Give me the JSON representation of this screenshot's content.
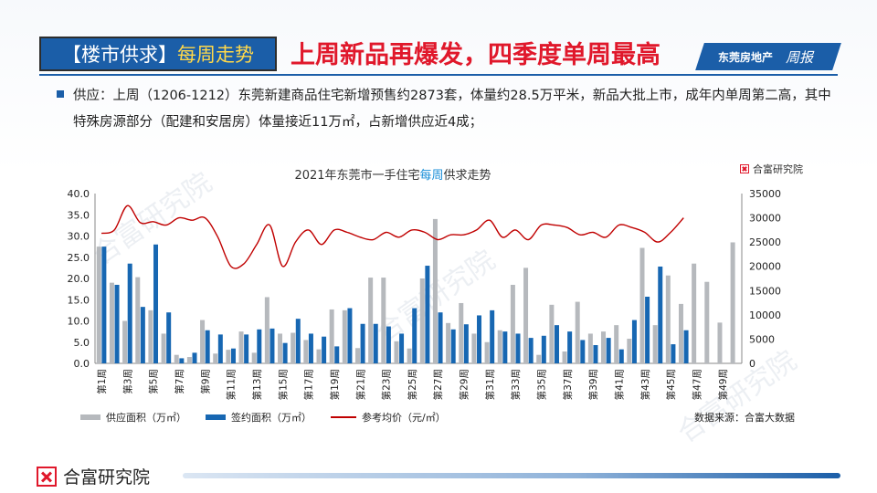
{
  "header": {
    "tag_prefix": "【楼市供求】",
    "tag_highlight": "每周走势",
    "headline": "上周新品再爆发，四季度单周最高",
    "brand": "东莞房地产",
    "brand_script": "周报"
  },
  "bullet": {
    "text": "供应：上周（1206-1212）东莞新建商品住宅新增预售约2873套，体量约28.5万平米，新品大批上市，成年内单周第二高，其中特殊房源部分（配建和安居房）体量接近11万㎡，占新增供应近4成；"
  },
  "chart": {
    "title_prefix": "2021年东莞市一手住宅",
    "title_highlight": "每周",
    "title_suffix": "供求走势",
    "logo_text": "合富研究院",
    "source": "数据来源：合富大数据",
    "watermark": "合富研究院"
  },
  "chart_data": {
    "type": "bar",
    "x": [
      "第1周",
      "第2周",
      "第3周",
      "第4周",
      "第5周",
      "第6周",
      "第7周",
      "第8周",
      "第9周",
      "第10周",
      "第11周",
      "第12周",
      "第13周",
      "第14周",
      "第15周",
      "第16周",
      "第17周",
      "第18周",
      "第19周",
      "第20周",
      "第21周",
      "第22周",
      "第23周",
      "第24周",
      "第25周",
      "第26周",
      "第27周",
      "第28周",
      "第29周",
      "第30周",
      "第31周",
      "第32周",
      "第33周",
      "第34周",
      "第35周",
      "第36周",
      "第37周",
      "第38周",
      "第39周",
      "第40周",
      "第41周",
      "第42周",
      "第43周",
      "第44周",
      "第45周",
      "第46周",
      "第47周",
      "第48周",
      "第49周",
      "第50周"
    ],
    "tick_labels": [
      "第1周",
      "第3周",
      "第5周",
      "第7周",
      "第9周",
      "第11周",
      "第13周",
      "第15周",
      "第17周",
      "第19周",
      "第21周",
      "第23周",
      "第25周",
      "第27周",
      "第29周",
      "第31周",
      "第33周",
      "第35周",
      "第37周",
      "第39周",
      "第41周",
      "第43周",
      "第45周",
      "第47周",
      "第49周"
    ],
    "series": [
      {
        "name": "供应面积（万㎡）",
        "axis": "left",
        "color": "#b6b9bd",
        "values": [
          27.5,
          19.0,
          10.0,
          20.3,
          12.5,
          7.0,
          2.0,
          1.5,
          10.2,
          2.3,
          3.2,
          7.5,
          2.5,
          15.6,
          7.0,
          7.2,
          5.5,
          3.3,
          12.7,
          12.5,
          3.6,
          20.2,
          20.2,
          5.2,
          3.5,
          20.0,
          34.0,
          9.5,
          14.2,
          7.0,
          5.0,
          7.8,
          18.5,
          22.5,
          2.0,
          13.8,
          2.8,
          14.5,
          7.0,
          7.5,
          9.0,
          5.8,
          27.2,
          9.0,
          20.7,
          14.0,
          23.5,
          19.2,
          9.6,
          28.5
        ]
      },
      {
        "name": "签约面积（万㎡）",
        "axis": "left",
        "color": "#1767b2",
        "values": [
          27.5,
          18.5,
          23.5,
          13.3,
          28.0,
          12.0,
          1.2,
          2.5,
          7.8,
          6.8,
          3.5,
          6.8,
          8.0,
          8.2,
          4.8,
          10.5,
          7.0,
          6.3,
          4.0,
          13.0,
          9.3,
          9.3,
          8.7,
          7.0,
          13.0,
          23.0,
          12.0,
          8.0,
          9.2,
          11.3,
          12.5,
          7.5,
          7.0,
          6.0,
          6.5,
          9.0,
          7.5,
          5.5,
          4.3,
          6.0,
          3.3,
          10.2,
          15.7,
          22.8,
          4.5,
          7.8,
          null,
          null,
          null,
          null
        ]
      },
      {
        "name": "参考均价（元/㎡）",
        "axis": "right",
        "type": "line",
        "color": "#c00000",
        "values": [
          26800,
          27500,
          32500,
          29000,
          29200,
          28500,
          30000,
          29500,
          30000,
          26000,
          20000,
          20500,
          24500,
          28500,
          20000,
          25000,
          27500,
          24500,
          27500,
          27000,
          26000,
          25500,
          27000,
          26000,
          27500,
          27000,
          25500,
          26500,
          26500,
          27500,
          29500,
          26000,
          27500,
          25500,
          28500,
          28500,
          28000,
          26500,
          27000,
          26000,
          28500,
          28000,
          27000,
          25000,
          27000,
          30000,
          null,
          null,
          null,
          null
        ]
      }
    ],
    "y_left": {
      "min": 0,
      "max": 40,
      "ticks": [
        "0.0",
        "5.0",
        "10.0",
        "15.0",
        "20.0",
        "25.0",
        "30.0",
        "35.0",
        "40.0"
      ]
    },
    "y_right": {
      "min": 0,
      "max": 35000,
      "ticks": [
        "0",
        "5000",
        "10000",
        "15000",
        "20000",
        "25000",
        "30000",
        "35000"
      ]
    },
    "grid": false,
    "legend_position": "bottom"
  },
  "footer": {
    "logo_text": "合富研究院"
  }
}
